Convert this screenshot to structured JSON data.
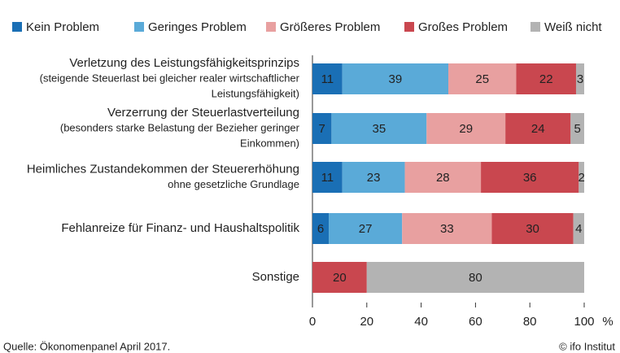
{
  "chart_data": {
    "type": "stacked-bar-horizontal",
    "categories": [
      [
        "Verletzung des Leistungsfähigkeitsprinzips",
        "(steigende Steuerlast bei gleicher realer wirtschaftlicher",
        "Leistungsfähigkeit)"
      ],
      [
        "Verzerrung der Steuerlastverteilung",
        "(besonders starke Belastung der Bezieher geringer",
        "Einkommen)"
      ],
      [
        "Heimliches Zustandekommen der Steuererhöhung",
        "ohne gesetzliche Grundlage"
      ],
      [
        "Fehlanreize für Finanz- und Haushaltspolitik"
      ],
      [
        "Sonstige"
      ]
    ],
    "series": [
      {
        "name": "Kein Problem",
        "color": "#1a6fb5",
        "values": [
          11,
          7,
          11,
          6,
          null
        ]
      },
      {
        "name": "Geringes Problem",
        "color": "#5aaad8",
        "values": [
          39,
          35,
          23,
          27,
          null
        ]
      },
      {
        "name": "Größeres Problem",
        "color": "#e8a0a0",
        "values": [
          25,
          29,
          28,
          33,
          null
        ]
      },
      {
        "name": "Großes Problem",
        "color": "#c9474f",
        "values": [
          22,
          24,
          36,
          30,
          20
        ]
      },
      {
        "name": "Weiß nicht",
        "color": "#b3b3b3",
        "values": [
          3,
          5,
          2,
          4,
          80
        ]
      }
    ],
    "xlim": [
      0,
      100
    ],
    "xticks": [
      0,
      20,
      40,
      60,
      80,
      100
    ],
    "x_label": "%",
    "source": "Quelle: Ökonomenpanel  April 2017.",
    "copyright": "© ifo Institut"
  }
}
